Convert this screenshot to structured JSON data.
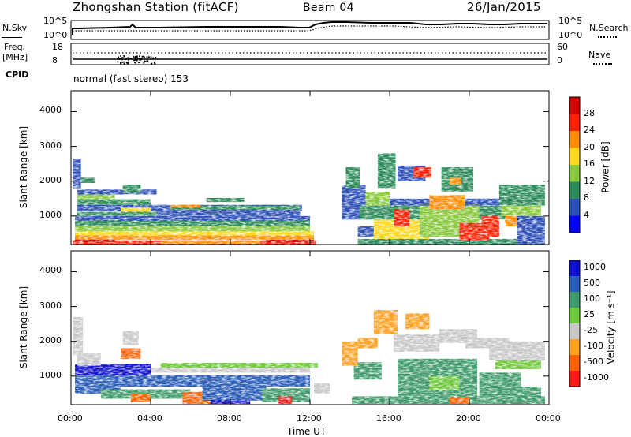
{
  "header": {
    "title": "Zhongshan Station (fitACF)",
    "beam": "Beam 04",
    "date": "26/Jan/2015"
  },
  "sky_panel": {
    "left_label": "N.Sky",
    "right_label": "N.Search",
    "y_ticks": [
      "10^5",
      "10^0"
    ]
  },
  "freq_panel": {
    "left_label_1": "Freq.",
    "left_label_2": "[MHz]",
    "left_ticks": [
      "18",
      "8"
    ],
    "right_label": "Nave",
    "right_ticks": [
      "60",
      "0"
    ],
    "cpid_label": "CPID",
    "mode_text": "normal (fast stereo) 153"
  },
  "chart_data": [
    {
      "type": "heatmap",
      "name": "power",
      "xlabel": "",
      "ylabel": "Slant Range [km]",
      "xlim": [
        0,
        24
      ],
      "ylim": [
        180,
        4600
      ],
      "y_ticks": [
        "1000",
        "2000",
        "3000",
        "4000"
      ],
      "colorbar": {
        "label": "Power [dB]",
        "ticks": [
          "4",
          "8",
          "12",
          "16",
          "20",
          "24",
          "28"
        ],
        "colors": [
          "#0000ff",
          "#2c4fb7",
          "#2b8b5a",
          "#88c83c",
          "#ffd81a",
          "#ff8c00",
          "#ff2000",
          "#d40000"
        ]
      }
    },
    {
      "type": "heatmap",
      "name": "velocity",
      "xlabel": "Time UT",
      "ylabel": "Slant Range [km]",
      "xlim": [
        0,
        24
      ],
      "ylim": [
        180,
        4600
      ],
      "y_ticks": [
        "1000",
        "2000",
        "3000",
        "4000"
      ],
      "x_ticks": [
        "00:00",
        "04:00",
        "08:00",
        "12:00",
        "16:00",
        "20:00",
        "00:00"
      ],
      "colorbar": {
        "label": "Velocity [m s⁻¹]",
        "ticks": [
          "1000",
          "500",
          "100",
          "25",
          "-25",
          "-100",
          "-500",
          "-1000"
        ],
        "colors": [
          "#1010d0",
          "#2a5db8",
          "#3e9a6a",
          "#6ec83a",
          "#c8c8c8",
          "#ffa020",
          "#ff6000",
          "#ff1818"
        ]
      }
    }
  ]
}
